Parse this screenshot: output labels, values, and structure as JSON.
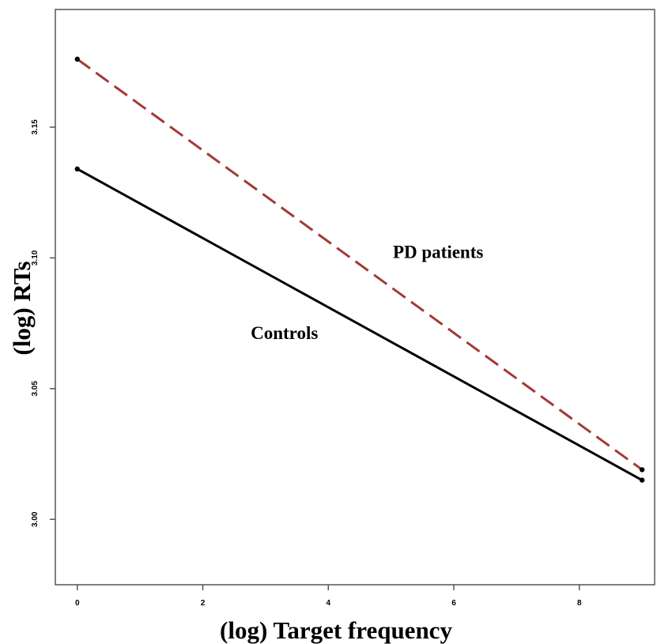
{
  "chart_data": {
    "type": "line",
    "xlabel": "(log) Target frequency",
    "ylabel": "(log) RTs",
    "xlim": [
      -0.35,
      9.2
    ],
    "ylim": [
      2.975,
      3.195
    ],
    "x_ticks": [
      0,
      2,
      4,
      6,
      8
    ],
    "x_tick_labels": [
      "0",
      "2",
      "4",
      "6",
      "8"
    ],
    "y_ticks": [
      3.0,
      3.05,
      3.1,
      3.15
    ],
    "y_tick_labels": [
      "3.00",
      "3.05",
      "3.10",
      "3.15"
    ],
    "grid": false,
    "legend": "none",
    "series": [
      {
        "name": "PD patients",
        "color": "#a33a36",
        "dash": "dashed",
        "points": [
          {
            "x": 0,
            "y": 3.176
          },
          {
            "x": 9,
            "y": 3.019
          }
        ],
        "label_at": {
          "x": 5.75,
          "y": 3.1
        }
      },
      {
        "name": "Controls",
        "color": "#000000",
        "dash": "solid",
        "points": [
          {
            "x": 0,
            "y": 3.134
          },
          {
            "x": 9,
            "y": 3.015
          }
        ],
        "label_at": {
          "x": 3.3,
          "y": 3.069
        }
      }
    ]
  }
}
